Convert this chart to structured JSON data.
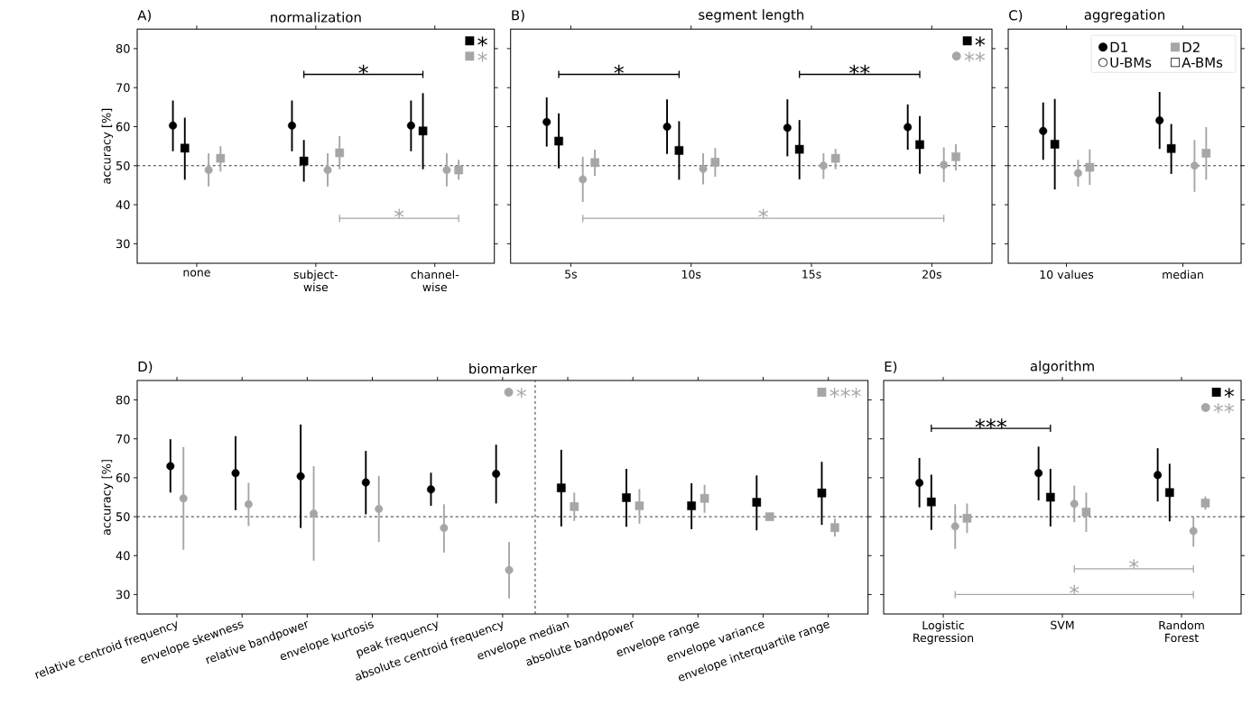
{
  "chart_data": [
    {
      "type": "scatter",
      "title": "normalization",
      "ylabel": "accuracy [%]",
      "categories": [
        "none",
        "subject-wise",
        "channel-wise"
      ],
      "ylim": [
        25,
        85
      ],
      "yticks": [
        30,
        40,
        50,
        60,
        70,
        80
      ],
      "series": [
        {
          "color": "#000000",
          "marker": "circle",
          "values": [
            60.3,
            60.3,
            60.3
          ],
          "errors": [
            [
              53.7,
              66.7
            ],
            [
              53.7,
              66.7
            ],
            [
              53.7,
              66.7
            ]
          ]
        },
        {
          "color": "#000000",
          "marker": "square",
          "values": [
            54.5,
            51.2,
            58.9
          ],
          "errors": [
            [
              46.4,
              62.3
            ],
            [
              45.9,
              56.6
            ],
            [
              49.1,
              68.6
            ]
          ]
        },
        {
          "color": "#a6a6a6",
          "marker": "circle",
          "values": [
            48.9,
            48.9,
            48.9
          ],
          "errors": [
            [
              44.7,
              53.2
            ],
            [
              44.7,
              53.2
            ],
            [
              44.7,
              53.2
            ]
          ]
        },
        {
          "color": "#a6a6a6",
          "marker": "square",
          "values": [
            51.9,
            53.3,
            48.9
          ],
          "errors": [
            [
              48.5,
              55
            ],
            [
              49.1,
              57.6
            ],
            [
              46.4,
              51.5
            ]
          ]
        }
      ],
      "ref_lines": [
        {
          "axis": "y",
          "value": 50,
          "color": "#000000",
          "line_style": "dashed"
        }
      ],
      "annotations": [
        "A)",
        "*",
        "*",
        "■",
        "*",
        "■",
        "*"
      ]
    },
    {
      "type": "scatter",
      "title": "segment length",
      "categories": [
        "5s",
        "10s",
        "15s",
        "20s"
      ],
      "ylim": [
        25,
        85
      ],
      "yticks": [
        30,
        40,
        50,
        60,
        70,
        80
      ],
      "tick_labels": "x",
      "series": [
        {
          "color": "#000000",
          "marker": "circle",
          "values": [
            61.2,
            60,
            59.7,
            59.9
          ],
          "errors": [
            [
              54.9,
              67.5
            ],
            [
              53,
              67
            ],
            [
              52.4,
              67
            ],
            [
              54.1,
              65.7
            ]
          ]
        },
        {
          "color": "#000000",
          "marker": "square",
          "values": [
            56.3,
            53.9,
            54.2,
            55.4
          ],
          "errors": [
            [
              49.3,
              63.4
            ],
            [
              46.4,
              61.4
            ],
            [
              46.5,
              61.7
            ],
            [
              47.9,
              62.7
            ]
          ]
        },
        {
          "color": "#a6a6a6",
          "marker": "circle",
          "values": [
            46.5,
            49.2,
            50,
            50.2
          ],
          "errors": [
            [
              40.7,
              52.3
            ],
            [
              45.2,
              53.2
            ],
            [
              46.6,
              53.2
            ],
            [
              45.8,
              54.7
            ]
          ]
        },
        {
          "color": "#a6a6a6",
          "marker": "square",
          "values": [
            50.8,
            50.9,
            51.9,
            52.3
          ],
          "errors": [
            [
              47.4,
              54.1
            ],
            [
              47.2,
              54.5
            ],
            [
              49.1,
              54.3
            ],
            [
              48.8,
              55.5
            ]
          ]
        }
      ],
      "ref_lines": [
        {
          "axis": "y",
          "value": 50,
          "color": "#000000",
          "line_style": "dashed"
        }
      ],
      "annotations": [
        "B)",
        "*",
        "**",
        "*",
        "■",
        "*",
        "●",
        "**"
      ]
    },
    {
      "type": "scatter",
      "title": "aggregation",
      "categories": [
        "10 values",
        "median"
      ],
      "ylim": [
        25,
        85
      ],
      "yticks": [
        30,
        40,
        50,
        60,
        70,
        80
      ],
      "tick_labels": "x",
      "series": [
        {
          "color": "#000000",
          "marker": "circle",
          "values": [
            58.9,
            61.6
          ],
          "errors": [
            [
              51.5,
              66.2
            ],
            [
              54.3,
              68.9
            ]
          ]
        },
        {
          "color": "#000000",
          "marker": "square",
          "values": [
            55.5,
            54.4
          ],
          "errors": [
            [
              43.9,
              67.1
            ],
            [
              47.9,
              60.7
            ]
          ]
        },
        {
          "color": "#a6a6a6",
          "marker": "circle",
          "values": [
            48.1,
            50
          ],
          "errors": [
            [
              44.7,
              51.5
            ],
            [
              43.3,
              56.6
            ]
          ]
        },
        {
          "color": "#a6a6a6",
          "marker": "square",
          "values": [
            49.6,
            53.2
          ],
          "errors": [
            [
              45.1,
              54.2
            ],
            [
              46.4,
              59.9
            ]
          ]
        }
      ],
      "ref_lines": [
        {
          "axis": "y",
          "value": 50,
          "color": "#000000",
          "line_style": "dashed"
        }
      ],
      "annotations": [
        "C)",
        "●",
        "D1",
        "■",
        "D2",
        "○",
        "U-BMs",
        "□",
        "A-BMs"
      ]
    },
    {
      "type": "scatter",
      "title": "biomarker",
      "ylabel": "accuracy [%]",
      "categories": [
        "relative centroid frequency",
        "envelope skewness",
        "relative bandpower",
        "envelope kurtosis",
        "peak frequency",
        "absolute centroid frequency",
        "envelope median",
        "absolute bandpower",
        "envelope range",
        "envelope variance",
        "envelope interquartile range"
      ],
      "ylim": [
        25,
        85
      ],
      "yticks": [
        30,
        40,
        50,
        60,
        70,
        80
      ],
      "series": [
        {
          "color": "#000000",
          "marker": "circle",
          "values": [
            63,
            61.2,
            60.4,
            58.8,
            57,
            61,
            null,
            null,
            null,
            null,
            null
          ],
          "errors": [
            [
              56.2,
              69.9
            ],
            [
              51.7,
              70.7
            ],
            [
              47.1,
              73.7
            ],
            [
              50.6,
              66.9
            ],
            [
              52.8,
              61.3
            ],
            [
              53.4,
              68.5
            ],
            null,
            null,
            null,
            null,
            null
          ]
        },
        {
          "color": "#000000",
          "marker": "square",
          "values": [
            null,
            null,
            null,
            null,
            null,
            null,
            57.4,
            54.9,
            52.8,
            53.7,
            56.1
          ],
          "errors": [
            null,
            null,
            null,
            null,
            null,
            null,
            [
              47.5,
              67.2
            ],
            [
              47.4,
              62.3
            ],
            [
              46.8,
              58.6
            ],
            [
              46.5,
              60.6
            ],
            [
              47.9,
              64.1
            ]
          ]
        },
        {
          "color": "#a6a6a6",
          "marker": "circle",
          "values": [
            54.7,
            53.2,
            50.8,
            52,
            47.1,
            36.3,
            null,
            null,
            null,
            null,
            null
          ],
          "errors": [
            [
              41.5,
              67.9
            ],
            [
              47.6,
              58.7
            ],
            [
              38.7,
              63
            ],
            [
              43.5,
              60.5
            ],
            [
              40.8,
              53.2
            ],
            [
              29,
              43.5
            ],
            null,
            null,
            null,
            null,
            null
          ]
        },
        {
          "color": "#a6a6a6",
          "marker": "square",
          "values": [
            null,
            null,
            null,
            null,
            null,
            null,
            52.6,
            52.8,
            54.7,
            50,
            47.2
          ],
          "errors": [
            null,
            null,
            null,
            null,
            null,
            null,
            [
              48.9,
              56.2
            ],
            [
              48.2,
              57.1
            ],
            [
              51,
              58.2
            ],
            [
              49.3,
              50.7
            ],
            [
              44.9,
              49.5
            ]
          ]
        }
      ],
      "ref_lines": [
        {
          "axis": "y",
          "value": 50,
          "color": "#000000",
          "line_style": "dashed"
        }
      ],
      "annotations": [
        "D)",
        "●",
        "*",
        "■",
        "***"
      ]
    },
    {
      "type": "scatter",
      "title": "algorithm",
      "categories": [
        "Logistic Regression",
        "SVM",
        "Random Forest"
      ],
      "ylim": [
        25,
        85
      ],
      "yticks": [
        30,
        40,
        50,
        60,
        70,
        80
      ],
      "tick_labels": "x",
      "series": [
        {
          "color": "#000000",
          "marker": "circle",
          "values": [
            58.7,
            61.2,
            60.7
          ],
          "errors": [
            [
              52.4,
              65.1
            ],
            [
              54.2,
              68
            ],
            [
              53.9,
              67.6
            ]
          ]
        },
        {
          "color": "#000000",
          "marker": "square",
          "values": [
            53.8,
            55,
            56.2
          ],
          "errors": [
            [
              46.6,
              60.8
            ],
            [
              47.5,
              62.3
            ],
            [
              48.8,
              63.6
            ]
          ]
        },
        {
          "color": "#a6a6a6",
          "marker": "circle",
          "values": [
            47.5,
            53.3,
            46.3
          ],
          "errors": [
            [
              41.7,
              53.2
            ],
            [
              48.6,
              58
            ],
            [
              42.3,
              49.9
            ]
          ]
        },
        {
          "color": "#a6a6a6",
          "marker": "square",
          "values": [
            49.6,
            51.2,
            53.5
          ],
          "errors": [
            [
              45.8,
              53.4
            ],
            [
              46.1,
              56.2
            ],
            [
              51.8,
              55.2
            ]
          ]
        }
      ],
      "ref_lines": [
        {
          "axis": "y",
          "value": 50,
          "color": "#000000",
          "line_style": "dashed"
        }
      ],
      "annotations": [
        "E)",
        "***",
        "*",
        "*",
        "■",
        "*",
        "●",
        "**"
      ]
    }
  ]
}
